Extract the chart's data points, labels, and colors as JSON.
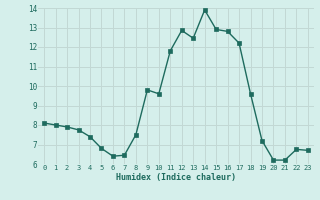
{
  "x": [
    0,
    1,
    2,
    3,
    4,
    5,
    6,
    7,
    8,
    9,
    10,
    11,
    12,
    13,
    14,
    15,
    16,
    17,
    18,
    19,
    20,
    21,
    22,
    23
  ],
  "y": [
    8.1,
    8.0,
    7.9,
    7.75,
    7.4,
    6.8,
    6.4,
    6.45,
    7.5,
    9.8,
    9.6,
    11.8,
    12.85,
    12.45,
    13.9,
    12.9,
    12.8,
    12.2,
    9.6,
    7.2,
    6.2,
    6.2,
    6.75,
    6.7
  ],
  "xlabel": "Humidex (Indice chaleur)",
  "ylim": [
    6,
    14
  ],
  "xlim_min": -0.5,
  "xlim_max": 23.5,
  "yticks": [
    6,
    7,
    8,
    9,
    10,
    11,
    12,
    13,
    14
  ],
  "xticks": [
    0,
    1,
    2,
    3,
    4,
    5,
    6,
    7,
    8,
    9,
    10,
    11,
    12,
    13,
    14,
    15,
    16,
    17,
    18,
    19,
    20,
    21,
    22,
    23
  ],
  "line_color": "#1e6b5e",
  "marker_color": "#1e6b5e",
  "bg_color": "#d5efeb",
  "grid_color": "#c2d8d4",
  "tick_color": "#1e6b5e",
  "label_color": "#1e6b5e"
}
